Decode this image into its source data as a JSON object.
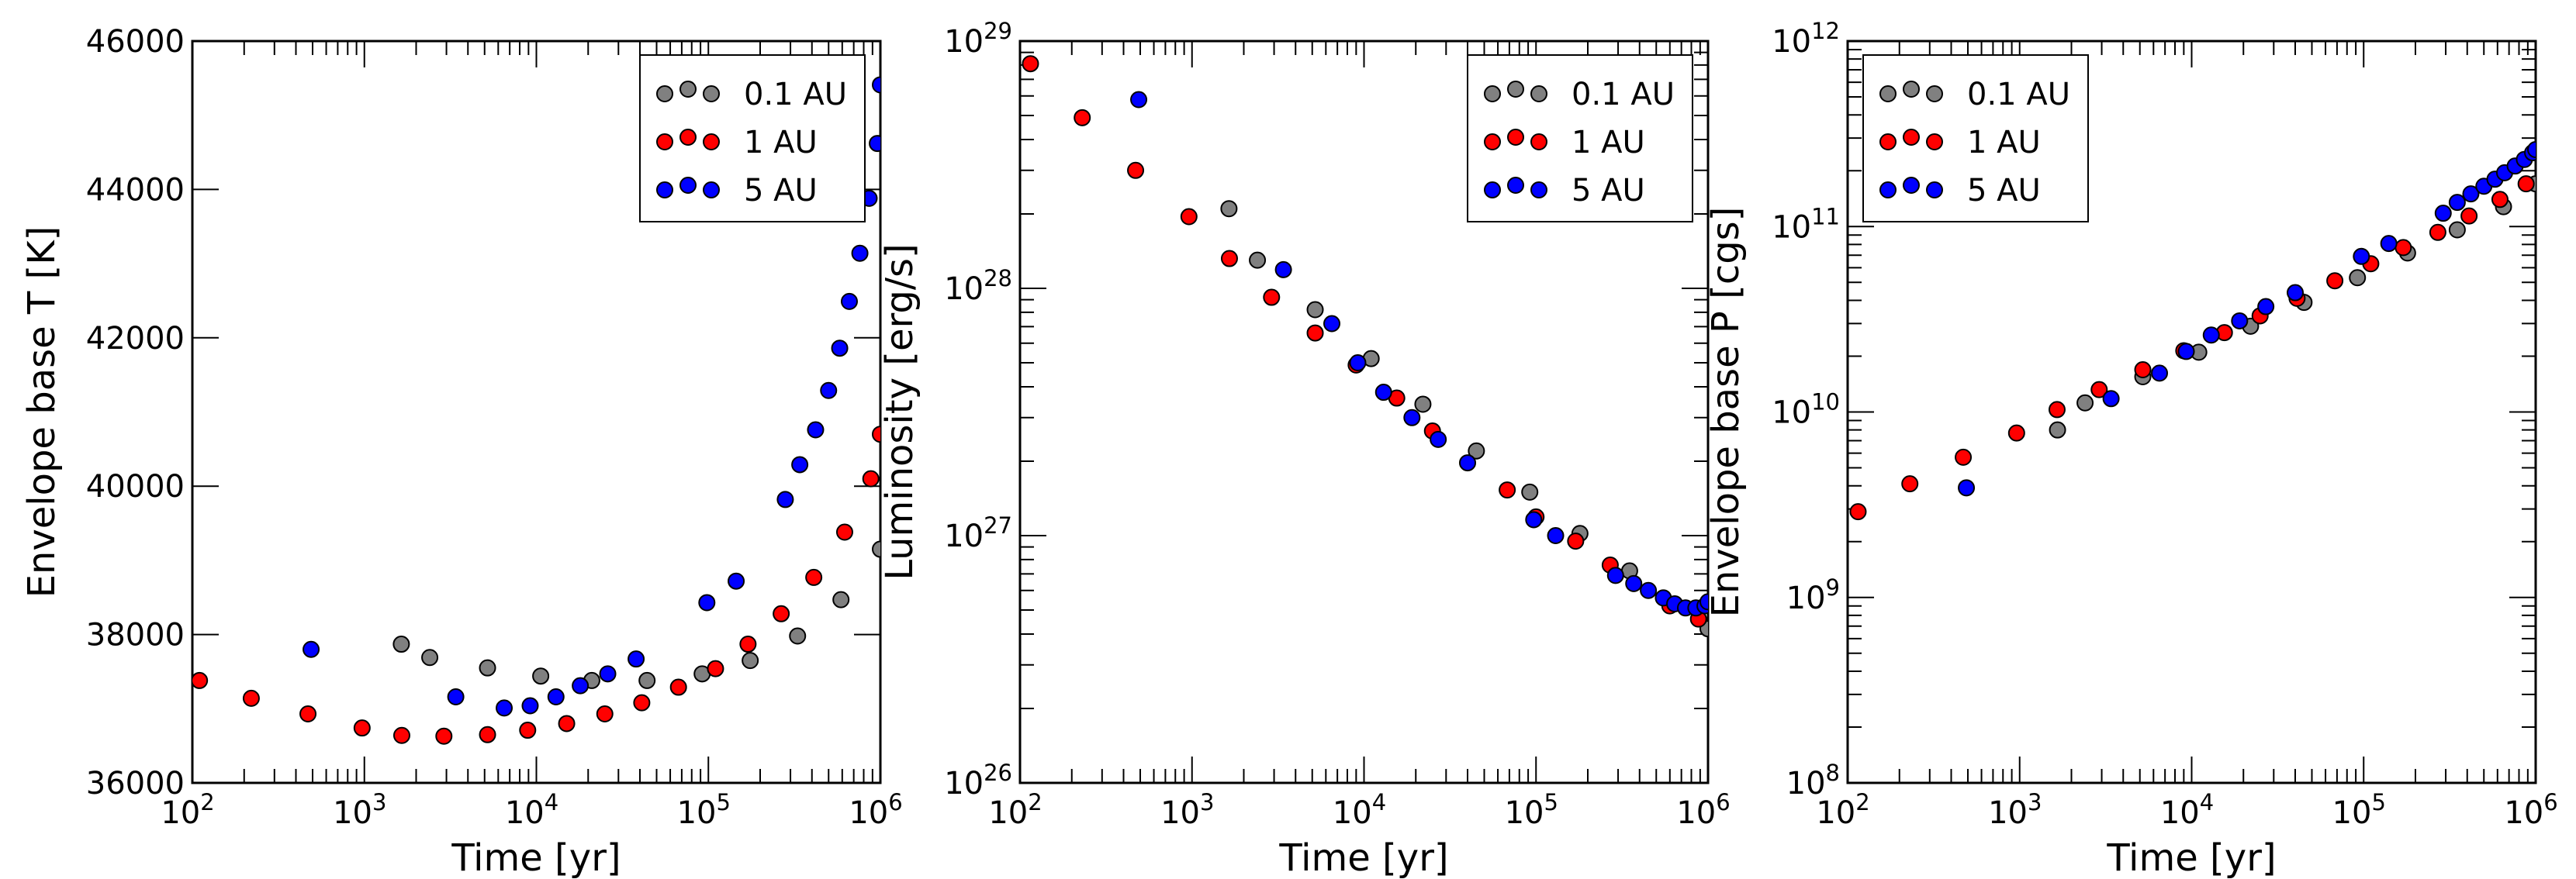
{
  "chart_data": [
    {
      "type": "scatter",
      "id": "temp",
      "xlabel": "Time [yr]",
      "ylabel": "Envelope base T [K]",
      "xscale": "log",
      "yscale": "linear",
      "xlim": [
        100,
        1000000
      ],
      "ylim": [
        36000,
        46000
      ],
      "x_tick_labels": [
        {
          "value": 100,
          "base": "10",
          "exp": "2"
        },
        {
          "value": 1000,
          "base": "10",
          "exp": "3"
        },
        {
          "value": 10000,
          "base": "10",
          "exp": "4"
        },
        {
          "value": 100000,
          "base": "10",
          "exp": "5"
        },
        {
          "value": 1000000,
          "base": "10",
          "exp": "6"
        }
      ],
      "y_tick_labels": [
        {
          "value": 36000,
          "text": "36000"
        },
        {
          "value": 38000,
          "text": "38000"
        },
        {
          "value": 40000,
          "text": "40000"
        },
        {
          "value": 42000,
          "text": "42000"
        },
        {
          "value": 44000,
          "text": "44000"
        },
        {
          "value": 46000,
          "text": "46000"
        }
      ],
      "legend_position": "top-right",
      "series": [
        {
          "name": "0.1 AU",
          "color": "#808080",
          "points": [
            [
              1640,
              37870
            ],
            [
              2400,
              37690
            ],
            [
              5200,
              37550
            ],
            [
              10600,
              37440
            ],
            [
              21000,
              37380
            ],
            [
              44000,
              37380
            ],
            [
              92000,
              37470
            ],
            [
              175000,
              37650
            ],
            [
              330000,
              37980
            ],
            [
              590000,
              38470
            ],
            [
              1000000,
              39150
            ]
          ]
        },
        {
          "name": "1 AU",
          "color": "#ff0000",
          "points": [
            [
              110,
              37380
            ],
            [
              220,
              37140
            ],
            [
              470,
              36930
            ],
            [
              970,
              36740
            ],
            [
              1650,
              36640
            ],
            [
              2900,
              36630
            ],
            [
              5200,
              36650
            ],
            [
              8900,
              36710
            ],
            [
              15000,
              36800
            ],
            [
              25000,
              36930
            ],
            [
              41000,
              37080
            ],
            [
              67000,
              37290
            ],
            [
              110000,
              37540
            ],
            [
              170000,
              37870
            ],
            [
              265000,
              38280
            ],
            [
              410000,
              38770
            ],
            [
              620000,
              39380
            ],
            [
              880000,
              40100
            ],
            [
              1000000,
              40700
            ]
          ]
        },
        {
          "name": "5 AU",
          "color": "#0000ff",
          "points": [
            [
              490,
              37800
            ],
            [
              3400,
              37160
            ],
            [
              6500,
              37010
            ],
            [
              9200,
              37040
            ],
            [
              13000,
              37160
            ],
            [
              18000,
              37310
            ],
            [
              26000,
              37470
            ],
            [
              38000,
              37670
            ],
            [
              98000,
              38430
            ],
            [
              145000,
              38720
            ],
            [
              280000,
              39820
            ],
            [
              340000,
              40290
            ],
            [
              420000,
              40760
            ],
            [
              500000,
              41290
            ],
            [
              580000,
              41860
            ],
            [
              660000,
              42490
            ],
            [
              760000,
              43140
            ],
            [
              860000,
              43880
            ],
            [
              960000,
              44620
            ],
            [
              1000000,
              45410
            ]
          ]
        }
      ]
    },
    {
      "type": "scatter",
      "id": "lum",
      "xlabel": "Time [yr]",
      "ylabel": "Luminosity [erg/s]",
      "xscale": "log",
      "yscale": "log",
      "xlim": [
        100,
        1000000
      ],
      "ylim": [
        1e+26,
        1e+29
      ],
      "x_tick_labels": [
        {
          "value": 100,
          "base": "10",
          "exp": "2"
        },
        {
          "value": 1000,
          "base": "10",
          "exp": "3"
        },
        {
          "value": 10000,
          "base": "10",
          "exp": "4"
        },
        {
          "value": 100000,
          "base": "10",
          "exp": "5"
        },
        {
          "value": 1000000,
          "base": "10",
          "exp": "6"
        }
      ],
      "y_tick_labels": [
        {
          "value": 1e+26,
          "base": "10",
          "exp": "26"
        },
        {
          "value": 1e+27,
          "base": "10",
          "exp": "27"
        },
        {
          "value": 1e+28,
          "base": "10",
          "exp": "28"
        },
        {
          "value": 1e+29,
          "base": "10",
          "exp": "29"
        }
      ],
      "legend_position": "top-right",
      "series": [
        {
          "name": "0.1 AU",
          "color": "#808080",
          "points": [
            [
              1640,
              2.1e+28
            ],
            [
              2400,
              1.3e+28
            ],
            [
              5200,
              8.2e+27
            ],
            [
              11000,
              5.2e+27
            ],
            [
              22000,
              3.4e+27
            ],
            [
              45000,
              2.2e+27
            ],
            [
              92000,
              1.5e+27
            ],
            [
              180000,
              1.02e+27
            ],
            [
              350000,
              7.2e+26
            ],
            [
              1000000,
              4.2e+26
            ]
          ]
        },
        {
          "name": "1 AU",
          "color": "#ff0000",
          "points": [
            [
              115,
              8.1e+28
            ],
            [
              230,
              4.9e+28
            ],
            [
              470,
              3e+28
            ],
            [
              960,
              1.95e+28
            ],
            [
              1650,
              1.32e+28
            ],
            [
              2900,
              9.2e+27
            ],
            [
              5200,
              6.6e+27
            ],
            [
              9000,
              4.9e+27
            ],
            [
              15500,
              3.6e+27
            ],
            [
              25000,
              2.65e+27
            ],
            [
              68000,
              1.53e+27
            ],
            [
              100000,
              1.19e+27
            ],
            [
              170000,
              9.5e+26
            ],
            [
              270000,
              7.6e+26
            ],
            [
              600000,
              5.2e+26
            ],
            [
              880000,
              4.6e+26
            ]
          ]
        },
        {
          "name": "5 AU",
          "color": "#0000ff",
          "points": [
            [
              490,
              5.8e+28
            ],
            [
              3400,
              1.19e+28
            ],
            [
              6500,
              7.2e+27
            ],
            [
              9200,
              5e+27
            ],
            [
              13000,
              3.8e+27
            ],
            [
              19000,
              3e+27
            ],
            [
              27000,
              2.45e+27
            ],
            [
              40000,
              1.97e+27
            ],
            [
              97000,
              1.16e+27
            ],
            [
              130000,
              1e+27
            ],
            [
              290000,
              6.9e+26
            ],
            [
              370000,
              6.4e+26
            ],
            [
              450000,
              6e+26
            ],
            [
              550000,
              5.6e+26
            ],
            [
              640000,
              5.3e+26
            ],
            [
              740000,
              5.1e+26
            ],
            [
              850000,
              5.1e+26
            ],
            [
              960000,
              5.2e+26
            ],
            [
              1000000,
              5.4e+26
            ]
          ]
        }
      ]
    },
    {
      "type": "scatter",
      "id": "pres",
      "xlabel": "Time [yr]",
      "ylabel": "Envelope base P [cgs]",
      "xscale": "log",
      "yscale": "log",
      "xlim": [
        100,
        1000000
      ],
      "ylim": [
        100000000.0,
        1000000000000.0
      ],
      "x_tick_labels": [
        {
          "value": 100,
          "base": "10",
          "exp": "2"
        },
        {
          "value": 1000,
          "base": "10",
          "exp": "3"
        },
        {
          "value": 10000,
          "base": "10",
          "exp": "4"
        },
        {
          "value": 100000,
          "base": "10",
          "exp": "5"
        },
        {
          "value": 1000000,
          "base": "10",
          "exp": "6"
        }
      ],
      "y_tick_labels": [
        {
          "value": 100000000.0,
          "base": "10",
          "exp": "8"
        },
        {
          "value": 1000000000.0,
          "base": "10",
          "exp": "9"
        },
        {
          "value": 10000000000.0,
          "base": "10",
          "exp": "10"
        },
        {
          "value": 100000000000.0,
          "base": "10",
          "exp": "11"
        },
        {
          "value": 1000000000000.0,
          "base": "10",
          "exp": "12"
        }
      ],
      "legend_position": "top-left",
      "series": [
        {
          "name": "0.1 AU",
          "color": "#808080",
          "points": [
            [
              1660,
              8000000000.0
            ],
            [
              2400,
              11200000000.0
            ],
            [
              5200,
              15500000000.0
            ],
            [
              11000,
              21000000000.0
            ],
            [
              22000,
              29000000000.0
            ],
            [
              45000,
              39000000000.0
            ],
            [
              92000,
              53000000000.0
            ],
            [
              180000,
              72000000000.0
            ],
            [
              350000,
              96000000000.0
            ],
            [
              650000,
              128000000000.0
            ],
            [
              1000000,
              170000000000.0
            ]
          ]
        },
        {
          "name": "1 AU",
          "color": "#ff0000",
          "points": [
            [
              115,
              2900000000.0
            ],
            [
              230,
              4100000000.0
            ],
            [
              470,
              5700000000.0
            ],
            [
              960,
              7700000000.0
            ],
            [
              1650,
              10300000000.0
            ],
            [
              2900,
              13200000000.0
            ],
            [
              5200,
              16900000000.0
            ],
            [
              9000,
              21400000000.0
            ],
            [
              15500,
              26800000000.0
            ],
            [
              25000,
              33000000000.0
            ],
            [
              41000,
              41000000000.0
            ],
            [
              68000,
              51000000000.0
            ],
            [
              110000,
              63000000000.0
            ],
            [
              170000,
              77000000000.0
            ],
            [
              270000,
              93000000000.0
            ],
            [
              410000,
              114000000000.0
            ],
            [
              620000,
              140000000000.0
            ],
            [
              880000,
              170000000000.0
            ]
          ]
        },
        {
          "name": "5 AU",
          "color": "#0000ff",
          "points": [
            [
              490,
              3900000000.0
            ],
            [
              3400,
              11800000000.0
            ],
            [
              6500,
              16200000000.0
            ],
            [
              9300,
              21200000000.0
            ],
            [
              13000,
              26000000000.0
            ],
            [
              19000,
              31000000000.0
            ],
            [
              27000,
              37000000000.0
            ],
            [
              40000,
              44000000000.0
            ],
            [
              97000,
              69000000000.0
            ],
            [
              140000,
              81000000000.0
            ],
            [
              290000,
              118000000000.0
            ],
            [
              350000,
              135000000000.0
            ],
            [
              420000,
              150000000000.0
            ],
            [
              500000,
              165000000000.0
            ],
            [
              580000,
              180000000000.0
            ],
            [
              660000,
              195000000000.0
            ],
            [
              760000,
              212000000000.0
            ],
            [
              860000,
              230000000000.0
            ],
            [
              960000,
              250000000000.0
            ],
            [
              1000000,
              260000000000.0
            ]
          ]
        }
      ]
    }
  ]
}
